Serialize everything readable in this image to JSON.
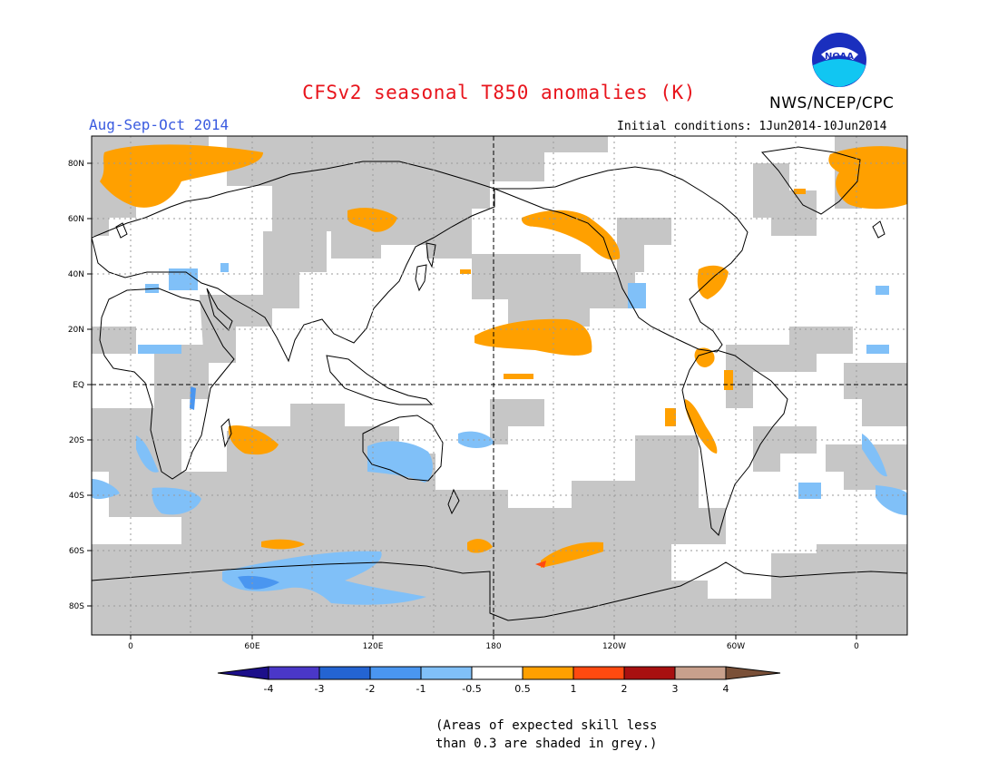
{
  "title": "CFSv2 seasonal T850 anomalies (K)",
  "season": "Aug-Sep-Oct 2014",
  "agency": "NWS/NCEP/CPC",
  "logo_text": "NOAA",
  "initial_conditions": "Initial conditions: 1Jun2014-10Jun2014",
  "lat_labels": [
    "80N",
    "60N",
    "40N",
    "20N",
    "EQ",
    "20S",
    "40S",
    "60S",
    "80S"
  ],
  "lon_labels": [
    "0",
    "60E",
    "120E",
    "180",
    "120W",
    "60W",
    "0"
  ],
  "colorbar": {
    "labels": [
      "-4",
      "-3",
      "-2",
      "-1",
      "-0.5",
      "0.5",
      "1",
      "2",
      "3",
      "4"
    ],
    "colors": [
      "#1c0f8a",
      "#4a37c8",
      "#2464d2",
      "#4a96f0",
      "#80c0f8",
      "#ffffff",
      "#ffa000",
      "#ff4a10",
      "#a81010",
      "#c8a08c",
      "#7a5038"
    ]
  },
  "note_line1": "(Areas of expected skill less",
  "note_line2": "than 0.3 are shaded in grey.)",
  "colors": {
    "grey_low_skill": "#c6c6c6",
    "warm_anomaly": "#ffa000",
    "cool_anomaly": "#80c0f8",
    "title": "#e8141c",
    "season": "#3a5be0"
  }
}
